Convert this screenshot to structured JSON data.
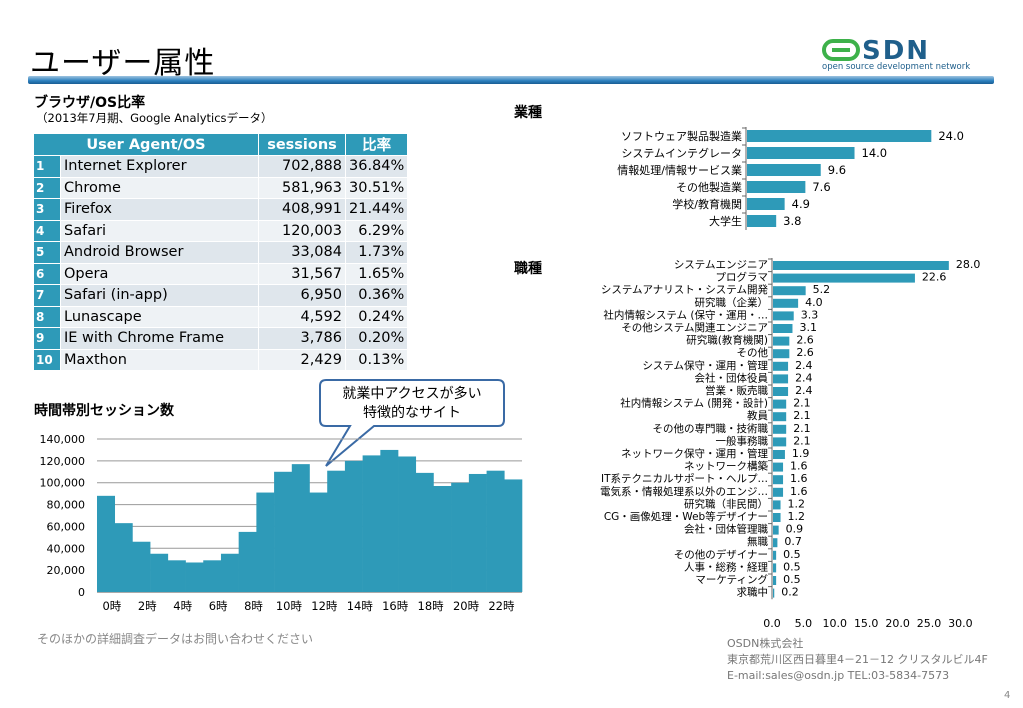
{
  "title": "ユーザー属性",
  "logo": {
    "brand": "OSDN",
    "tagline": "open source development network"
  },
  "browser": {
    "heading": "ブラウザ/OS比率",
    "note": "（2013年7月期、Google Analyticsデータ）",
    "columns": [
      "User Agent/OS",
      "sessions",
      "比率"
    ],
    "rows": [
      {
        "rank": "1",
        "name": "Internet Explorer",
        "sessions": "702,888",
        "ratio": "36.84%"
      },
      {
        "rank": "2",
        "name": "Chrome",
        "sessions": "581,963",
        "ratio": "30.51%"
      },
      {
        "rank": "3",
        "name": "Firefox",
        "sessions": "408,991",
        "ratio": "21.44%"
      },
      {
        "rank": "4",
        "name": "Safari",
        "sessions": "120,003",
        "ratio": "6.29%"
      },
      {
        "rank": "5",
        "name": "Android Browser",
        "sessions": "33,084",
        "ratio": "1.73%"
      },
      {
        "rank": "6",
        "name": "Opera",
        "sessions": "31,567",
        "ratio": "1.65%"
      },
      {
        "rank": "7",
        "name": "Safari (in-app)",
        "sessions": "6,950",
        "ratio": "0.36%"
      },
      {
        "rank": "8",
        "name": "Lunascape",
        "sessions": "4,592",
        "ratio": "0.24%"
      },
      {
        "rank": "9",
        "name": "IE with Chrome Frame",
        "sessions": "3,786",
        "ratio": "0.20%"
      },
      {
        "rank": "10",
        "name": "Maxthon",
        "sessions": "2,429",
        "ratio": "0.13%"
      }
    ]
  },
  "callout": {
    "line1": "就業中アクセスが多い",
    "line2": "特徴的なサイト"
  },
  "time_heading": "時間帯別セッション数",
  "industry_heading": "業種",
  "job_heading": "職種",
  "footnote": "そのほかの詳細調査データはお問い合わせください",
  "company": {
    "name": "OSDN株式会社",
    "address": "東京都荒川区西日暮里4－21－12 クリスタルビル4F",
    "contact": "E-mail:sales@osdn.jp TEL:03-5834-7573"
  },
  "page_number": "4",
  "colors": {
    "bar": "#2e9ab8",
    "header": "#2e9ab8",
    "title_bar": "#2b7fbe",
    "logo_green": "#3db14a",
    "logo_blue": "#1f5f8b"
  },
  "chart_data": [
    {
      "type": "area",
      "categories": [
        "0時",
        "1時",
        "2時",
        "3時",
        "4時",
        "5時",
        "6時",
        "7時",
        "8時",
        "9時",
        "10時",
        "11時",
        "12時",
        "13時",
        "14時",
        "15時",
        "16時",
        "17時",
        "18時",
        "19時",
        "20時",
        "21時",
        "22時",
        "23時"
      ],
      "tick_labels": [
        "0時",
        "2時",
        "4時",
        "6時",
        "8時",
        "10時",
        "12時",
        "14時",
        "16時",
        "18時",
        "20時",
        "22時"
      ],
      "values": [
        88000,
        63000,
        46000,
        35000,
        29000,
        27000,
        29000,
        35000,
        55000,
        91000,
        110000,
        117000,
        91000,
        111000,
        120000,
        125000,
        130000,
        124000,
        109000,
        97000,
        100000,
        108000,
        111000,
        103000
      ],
      "y_ticks": [
        "0",
        "20,000",
        "40,000",
        "60,000",
        "80,000",
        "100,000",
        "120,000",
        "140,000"
      ],
      "ylim": [
        0,
        140000
      ]
    },
    {
      "type": "bar",
      "orientation": "horizontal",
      "categories": [
        "ソフトウェア製品製造業",
        "システムインテグレータ",
        "情報処理/情報サービス業",
        "その他製造業",
        "学校/教育機関",
        "大学生"
      ],
      "values": [
        24.0,
        14.0,
        9.6,
        7.6,
        4.9,
        3.8
      ],
      "value_labels": [
        "24.0",
        "14.0",
        "9.6",
        "7.6",
        "4.9",
        "3.8"
      ],
      "xlim": [
        0,
        30
      ]
    },
    {
      "type": "bar",
      "orientation": "horizontal",
      "categories": [
        "システムエンジニア",
        "プログラマ",
        "システムアナリスト・システム開発",
        "研究職（企業）",
        "社内情報システム (保守・運用・…",
        "その他システム関連エンジニア",
        "研究職(教育機関)",
        "その他",
        "システム保守・運用・管理",
        "会社・団体役員",
        "営業・販売職",
        "社内情報システム (開発・設計)",
        "教員",
        "その他の専門職・技術職",
        "一般事務職",
        "ネットワーク保守・運用・管理",
        "ネットワーク構築",
        "IT系テクニカルサポート・ヘルプ…",
        "電気系・情報処理系以外のエンジ…",
        "研究職（非民間）",
        "CG・画像処理・Web等デザイナー",
        "会社・団体管理職",
        "無職",
        "その他のデザイナー",
        "人事・総務・経理",
        "マーケティング",
        "求職中"
      ],
      "values": [
        28.0,
        22.6,
        5.2,
        4.0,
        3.3,
        3.1,
        2.6,
        2.6,
        2.4,
        2.4,
        2.4,
        2.1,
        2.1,
        2.1,
        2.1,
        1.9,
        1.6,
        1.6,
        1.6,
        1.2,
        1.2,
        0.9,
        0.7,
        0.5,
        0.5,
        0.5,
        0.2
      ],
      "value_labels": [
        "28.0",
        "22.6",
        "5.2",
        "4.0",
        "3.3",
        "3.1",
        "2.6",
        "2.6",
        "2.4",
        "2.4",
        "2.4",
        "2.1",
        "2.1",
        "2.1",
        "2.1",
        "1.9",
        "1.6",
        "1.6",
        "1.6",
        "1.2",
        "1.2",
        "0.9",
        "0.7",
        "0.5",
        "0.5",
        "0.5",
        "0.2"
      ],
      "x_ticks": [
        "0.0",
        "5.0",
        "10.0",
        "15.0",
        "20.0",
        "25.0",
        "30.0"
      ],
      "xlim": [
        0,
        30
      ]
    }
  ]
}
